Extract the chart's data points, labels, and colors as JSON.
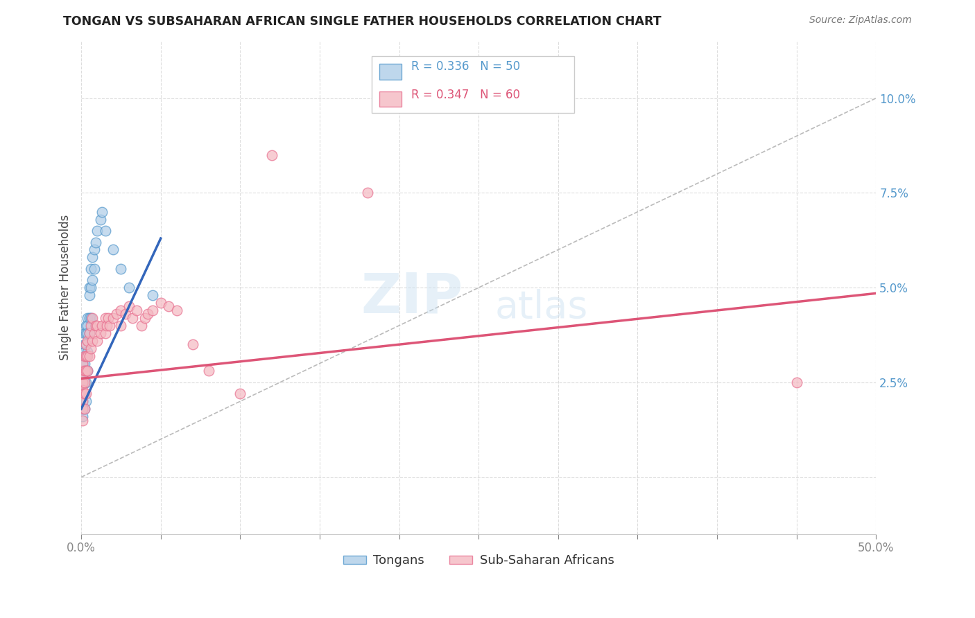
{
  "title": "TONGAN VS SUBSAHARAN AFRICAN SINGLE FATHER HOUSEHOLDS CORRELATION CHART",
  "source": "Source: ZipAtlas.com",
  "ylabel": "Single Father Households",
  "ytick_labels": [
    "",
    "2.5%",
    "5.0%",
    "7.5%",
    "10.0%"
  ],
  "ytick_values": [
    0.0,
    0.025,
    0.05,
    0.075,
    0.1
  ],
  "xlim": [
    0.0,
    0.5
  ],
  "ylim": [
    -0.015,
    0.115
  ],
  "legend_blue_r": "R = 0.336",
  "legend_blue_n": "N = 50",
  "legend_pink_r": "R = 0.347",
  "legend_pink_n": "N = 60",
  "legend_blue_label": "Tongans",
  "legend_pink_label": "Sub-Saharan Africans",
  "blue_color": "#aecde8",
  "pink_color": "#f4b8c1",
  "blue_edge_color": "#5599cc",
  "pink_edge_color": "#e87090",
  "blue_line_color": "#3366bb",
  "pink_line_color": "#dd5577",
  "dashed_line_color": "#bbbbbb",
  "background_color": "#ffffff",
  "grid_color": "#dddddd",
  "title_color": "#222222",
  "ylabel_color": "#444444",
  "right_tick_color": "#5599cc",
  "watermark_zip": "ZIP",
  "watermark_atlas": "atlas",
  "blue_x": [
    0.001,
    0.001,
    0.001,
    0.001,
    0.001,
    0.001,
    0.001,
    0.001,
    0.001,
    0.001,
    0.002,
    0.002,
    0.002,
    0.002,
    0.002,
    0.002,
    0.002,
    0.002,
    0.003,
    0.003,
    0.003,
    0.003,
    0.003,
    0.003,
    0.003,
    0.004,
    0.004,
    0.004,
    0.004,
    0.004,
    0.005,
    0.005,
    0.005,
    0.005,
    0.006,
    0.006,
    0.006,
    0.007,
    0.007,
    0.008,
    0.008,
    0.009,
    0.01,
    0.012,
    0.013,
    0.015,
    0.02,
    0.025,
    0.03,
    0.045
  ],
  "blue_y": [
    0.025,
    0.028,
    0.03,
    0.03,
    0.027,
    0.025,
    0.022,
    0.02,
    0.018,
    0.016,
    0.038,
    0.035,
    0.033,
    0.03,
    0.028,
    0.025,
    0.022,
    0.018,
    0.04,
    0.038,
    0.035,
    0.032,
    0.028,
    0.025,
    0.02,
    0.042,
    0.04,
    0.038,
    0.033,
    0.028,
    0.05,
    0.048,
    0.042,
    0.038,
    0.055,
    0.05,
    0.042,
    0.058,
    0.052,
    0.06,
    0.055,
    0.062,
    0.065,
    0.068,
    0.07,
    0.065,
    0.06,
    0.055,
    0.05,
    0.048
  ],
  "pink_x": [
    0.001,
    0.001,
    0.001,
    0.001,
    0.001,
    0.001,
    0.001,
    0.001,
    0.001,
    0.001,
    0.002,
    0.002,
    0.002,
    0.002,
    0.002,
    0.003,
    0.003,
    0.003,
    0.003,
    0.004,
    0.004,
    0.004,
    0.005,
    0.005,
    0.006,
    0.006,
    0.007,
    0.007,
    0.008,
    0.009,
    0.01,
    0.01,
    0.012,
    0.013,
    0.015,
    0.015,
    0.016,
    0.017,
    0.018,
    0.02,
    0.022,
    0.025,
    0.025,
    0.028,
    0.03,
    0.032,
    0.035,
    0.038,
    0.04,
    0.042,
    0.045,
    0.05,
    0.055,
    0.06,
    0.07,
    0.08,
    0.1,
    0.12,
    0.18,
    0.45
  ],
  "pink_y": [
    0.025,
    0.028,
    0.03,
    0.027,
    0.025,
    0.023,
    0.022,
    0.02,
    0.018,
    0.015,
    0.032,
    0.028,
    0.025,
    0.022,
    0.018,
    0.035,
    0.032,
    0.028,
    0.022,
    0.036,
    0.032,
    0.028,
    0.038,
    0.032,
    0.04,
    0.034,
    0.042,
    0.036,
    0.038,
    0.04,
    0.04,
    0.036,
    0.038,
    0.04,
    0.042,
    0.038,
    0.04,
    0.042,
    0.04,
    0.042,
    0.043,
    0.044,
    0.04,
    0.043,
    0.045,
    0.042,
    0.044,
    0.04,
    0.042,
    0.043,
    0.044,
    0.046,
    0.045,
    0.044,
    0.035,
    0.028,
    0.022,
    0.085,
    0.075,
    0.025
  ],
  "blue_line_x": [
    0.0,
    0.05
  ],
  "blue_line_y_intercept": 0.018,
  "blue_line_slope": 0.9,
  "pink_line_x": [
    0.0,
    0.5
  ],
  "pink_line_y_intercept": 0.026,
  "pink_line_slope": 0.045
}
